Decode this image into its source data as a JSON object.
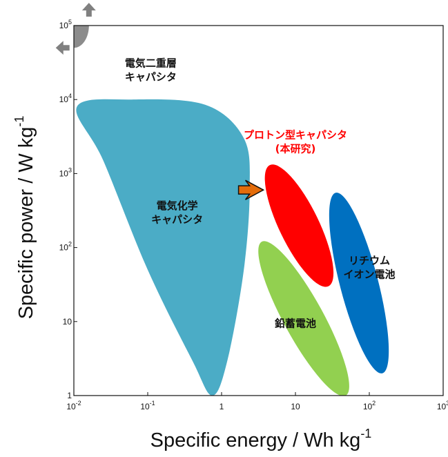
{
  "chart_data": {
    "type": "scatter",
    "title": "",
    "xlabel": {
      "main": "Specific energy / Wh kg",
      "sup": "-1"
    },
    "ylabel": {
      "main": "Specific power / W kg",
      "sup": "-1"
    },
    "x_scale": "log",
    "y_scale": "log",
    "xlim": [
      0.01,
      1000
    ],
    "ylim": [
      1,
      100000
    ],
    "grid": false,
    "x_ticks": [
      {
        "value": 0.01,
        "base": "10",
        "sup": "-2"
      },
      {
        "value": 0.1,
        "base": "10",
        "sup": "-1"
      },
      {
        "value": 1,
        "base": "1",
        "sup": ""
      },
      {
        "value": 10,
        "base": "10",
        "sup": ""
      },
      {
        "value": 100,
        "base": "10",
        "sup": "2"
      },
      {
        "value": 1000,
        "base": "10",
        "sup": "3"
      }
    ],
    "y_ticks": [
      {
        "value": 1,
        "base": "1",
        "sup": ""
      },
      {
        "value": 10,
        "base": "10",
        "sup": ""
      },
      {
        "value": 100,
        "base": "10",
        "sup": "2"
      },
      {
        "value": 1000,
        "base": "10",
        "sup": "3"
      },
      {
        "value": 10000,
        "base": "10",
        "sup": "4"
      },
      {
        "value": 100000,
        "base": "10",
        "sup": "5"
      }
    ],
    "regions": [
      {
        "id": "edlc",
        "label": [
          "電気二重層",
          "キャパシタ"
        ],
        "color": "#8c8c8c",
        "label_color": "#111111",
        "label_at": [
          0.11,
          28000
        ],
        "shape": "quarter-disc",
        "energy_range": [
          0.01,
          0.016
        ],
        "power_range": [
          50000,
          100000
        ]
      },
      {
        "id": "electrochemical",
        "label": [
          "電気化学",
          "キャパシタ"
        ],
        "color": "#4bacc6",
        "label_color": "#111111",
        "label_at": [
          0.25,
          330
        ],
        "outline": [
          [
            0.011,
            8000
          ],
          [
            0.06,
            10000
          ],
          [
            0.6,
            8500
          ],
          [
            2.0,
            3000
          ],
          [
            2.4,
            600
          ],
          [
            2.0,
            50
          ],
          [
            1.2,
            3
          ],
          [
            0.75,
            1
          ],
          [
            0.4,
            3
          ],
          [
            0.1,
            50
          ],
          [
            0.025,
            1500
          ],
          [
            0.011,
            8000
          ]
        ]
      },
      {
        "id": "proton",
        "label": [
          "プロトン型キャパシタ",
          "(本研究)"
        ],
        "color": "#ff0000",
        "label_color": "#ff0000",
        "label_at": [
          10,
          3000
        ],
        "energy_range": [
          4.5,
          28
        ],
        "power_range": [
          30,
          1300
        ]
      },
      {
        "id": "lead_acid",
        "label": [
          "鉛蓄電池"
        ],
        "color": "#92d050",
        "label_color": "#111111",
        "label_at": [
          10,
          8.5
        ],
        "energy_range": [
          3.5,
          48
        ],
        "power_range": [
          1,
          120
        ]
      },
      {
        "id": "lithium_ion",
        "label": [
          "リチウム",
          "イオン電池"
        ],
        "color": "#0070c0",
        "label_color": "#111111",
        "label_at": [
          100,
          60
        ],
        "energy_range": [
          35,
          150
        ],
        "power_range": [
          2,
          550
        ]
      }
    ],
    "annotations": [
      {
        "type": "arrow",
        "color": "#e46c0a",
        "at": [
          2.5,
          600
        ],
        "direction": "right"
      },
      {
        "type": "arrow",
        "color": "#808080",
        "at": [
          0.016,
          160000
        ],
        "direction": "up"
      },
      {
        "type": "arrow",
        "color": "#808080",
        "at": [
          0.0072,
          50000
        ],
        "direction": "left"
      }
    ]
  }
}
